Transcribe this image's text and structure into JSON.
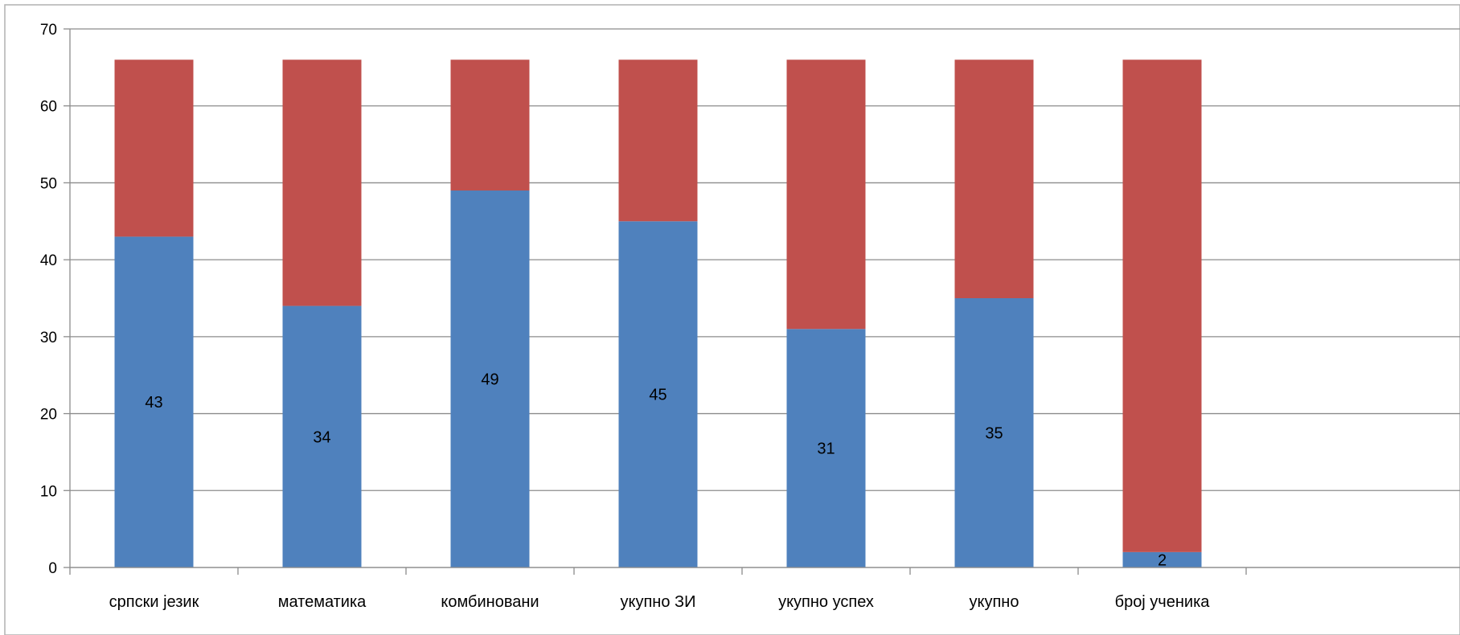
{
  "chart_data": {
    "type": "bar",
    "stacked": true,
    "categories": [
      "српски језик",
      "математика",
      "комбиновани",
      "укупно ЗИ",
      "укупно успех",
      "укупно",
      "број ученика"
    ],
    "series": [
      {
        "values": [
          43,
          34,
          49,
          45,
          31,
          35,
          2
        ],
        "color": "#4f81bd"
      },
      {
        "values": [
          23,
          32,
          17,
          21,
          35,
          31,
          64
        ],
        "color": "#c0504d"
      }
    ],
    "data_labels": [
      "43",
      "34",
      "49",
      "45",
      "31",
      "35",
      "2"
    ],
    "ylim": [
      0,
      70
    ],
    "yticks": [
      0,
      10,
      20,
      30,
      40,
      50,
      60,
      70
    ],
    "grid": true,
    "legend": "none"
  }
}
